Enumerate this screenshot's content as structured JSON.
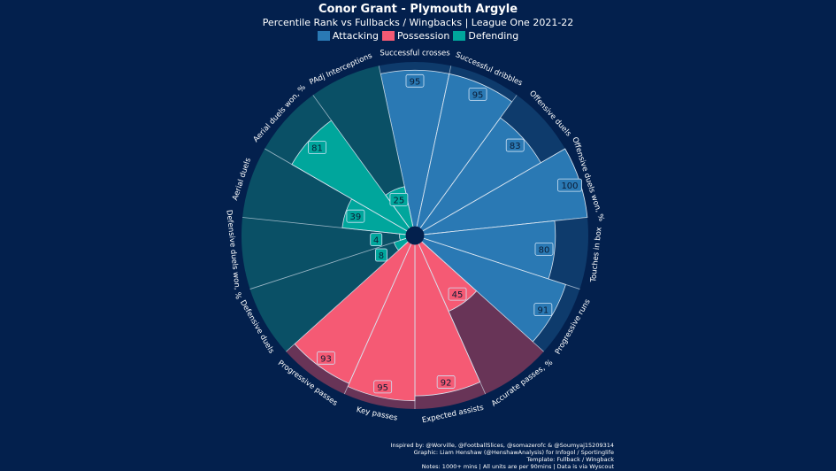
{
  "title": "Conor Grant - Plymouth Argyle",
  "subtitle": "Percentile Rank vs Fullbacks / Wingbacks | League One 2021-22",
  "legend": [
    {
      "label": "Attacking",
      "color": "#2a79b4"
    },
    {
      "label": "Possession",
      "color": "#f55a74"
    },
    {
      "label": "Defending",
      "color": "#00a69c"
    }
  ],
  "footer": [
    "Inspired by: @Worville, @FootballSlices, @somazerofc & @Soumyaj15209314",
    "Graphic: Liam Henshaw (@HenshawAnalysis) for Infogol / Sportinglife",
    "Template: Fullback / Wingback",
    "Notes: 1000+ mins | All units are per 90mins | Data is via Wyscout"
  ],
  "chart_data": {
    "type": "pizza",
    "range": [
      0,
      100
    ],
    "groups": {
      "Attacking": {
        "fill": "#2a79b4",
        "bg": "#0e3b6c"
      },
      "Possession": {
        "fill": "#f55a74",
        "bg": "#683457"
      },
      "Defending": {
        "fill": "#00a69c",
        "bg": "#0a5066"
      }
    },
    "params": [
      {
        "label": "Successful crosses",
        "value": 95,
        "group": "Attacking"
      },
      {
        "label": "Successful dribbles",
        "value": 95,
        "group": "Attacking"
      },
      {
        "label": "Offensive duels",
        "value": 83,
        "group": "Attacking"
      },
      {
        "label": "Offensive duels won, %",
        "value": 100,
        "group": "Attacking"
      },
      {
        "label": "Touches in box",
        "value": 80,
        "group": "Attacking"
      },
      {
        "label": "Progressive runs",
        "value": 91,
        "group": "Attacking"
      },
      {
        "label": "Accurate passes, %",
        "value": 45,
        "group": "Possession"
      },
      {
        "label": "Expected assists",
        "value": 92,
        "group": "Possession"
      },
      {
        "label": "Key passes",
        "value": 95,
        "group": "Possession"
      },
      {
        "label": "Progressive passes",
        "value": 93,
        "group": "Possession"
      },
      {
        "label": "Defensive duels",
        "value": 8,
        "group": "Defending"
      },
      {
        "label": "Defensive duels won, %",
        "value": 4,
        "group": "Defending"
      },
      {
        "label": "Aerial duels",
        "value": 39,
        "group": "Defending"
      },
      {
        "label": "Aerial duels won, %",
        "value": 81,
        "group": "Defending"
      },
      {
        "label": "PAdj Interceptions",
        "value": 25,
        "group": "Defending"
      }
    ]
  }
}
